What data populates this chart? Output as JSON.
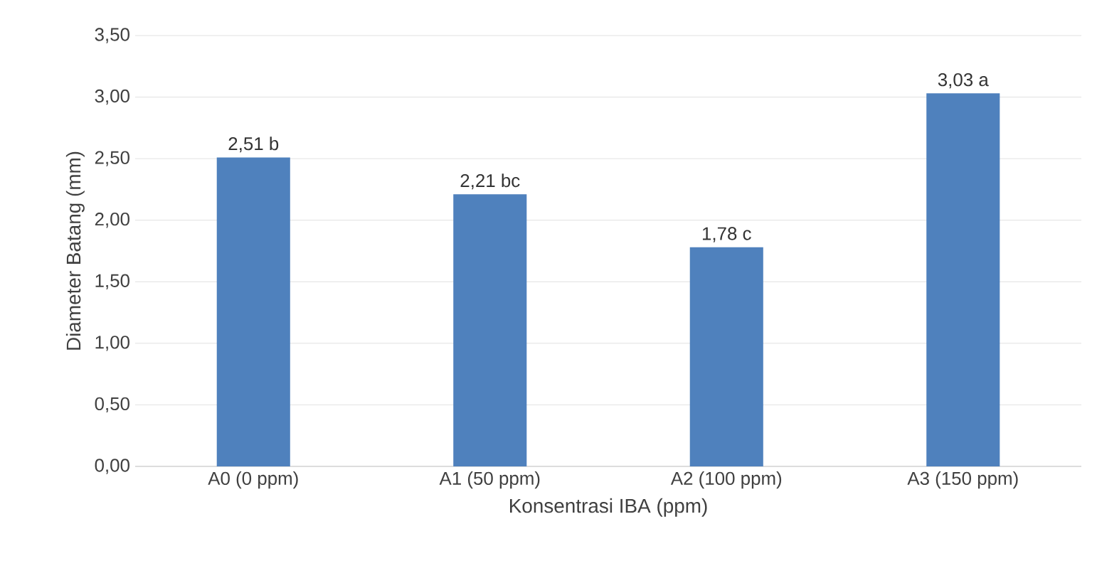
{
  "chart_data": {
    "type": "bar",
    "xlabel": "Konsentrasi IBA (ppm)",
    "ylabel": "Diameter Batang (mm)",
    "categories": [
      "A0 (0 ppm)",
      "A1 (50 ppm)",
      "A2 (100 ppm)",
      "A3 (150 ppm)"
    ],
    "values": [
      2.51,
      2.21,
      1.78,
      3.03
    ],
    "value_labels": [
      "2,51 b",
      "2,21 bc",
      "1,78 c",
      "3,03 a"
    ],
    "color": "#4f81bd",
    "ylim": [
      0,
      3.5
    ],
    "yticks": [
      {
        "value": 0,
        "label": "0,00"
      },
      {
        "value": 0.5,
        "label": "0,50"
      },
      {
        "value": 1,
        "label": "1,00"
      },
      {
        "value": 1.5,
        "label": "1,50"
      },
      {
        "value": 2,
        "label": "2,00"
      },
      {
        "value": 2.5,
        "label": "2,50"
      },
      {
        "value": 3,
        "label": "3,00"
      },
      {
        "value": 3.5,
        "label": "3,50"
      }
    ],
    "grid": "y"
  }
}
